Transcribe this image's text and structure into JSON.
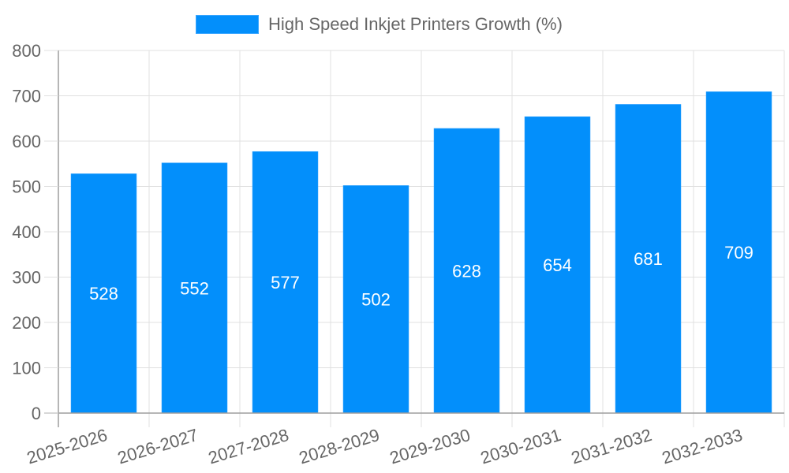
{
  "chart_data": {
    "type": "bar",
    "title": "",
    "xlabel": "",
    "ylabel": "",
    "ylim": [
      0,
      800
    ],
    "yticks": [
      0,
      100,
      200,
      300,
      400,
      500,
      600,
      700,
      800
    ],
    "grid": true,
    "legend_position": "top",
    "categories": [
      "2025-2026",
      "2026-2027",
      "2027-2028",
      "2028-2029",
      "2029-2030",
      "2030-2031",
      "2031-2032",
      "2032-2033"
    ],
    "series": [
      {
        "name": "High Speed Inkjet Printers Growth (%)",
        "color": "#038ffb",
        "values": [
          528,
          552,
          577,
          502,
          628,
          654,
          681,
          709
        ]
      }
    ],
    "data_labels": true
  },
  "legend": {
    "label": "High Speed Inkjet Printers Growth (%)",
    "color": "#038ffb"
  },
  "colors": {
    "bar": "#038ffb",
    "grid": "#e0e0e0",
    "axis": "#9e9e9e",
    "tick_text": "#666666",
    "data_label": "#ffffff"
  }
}
